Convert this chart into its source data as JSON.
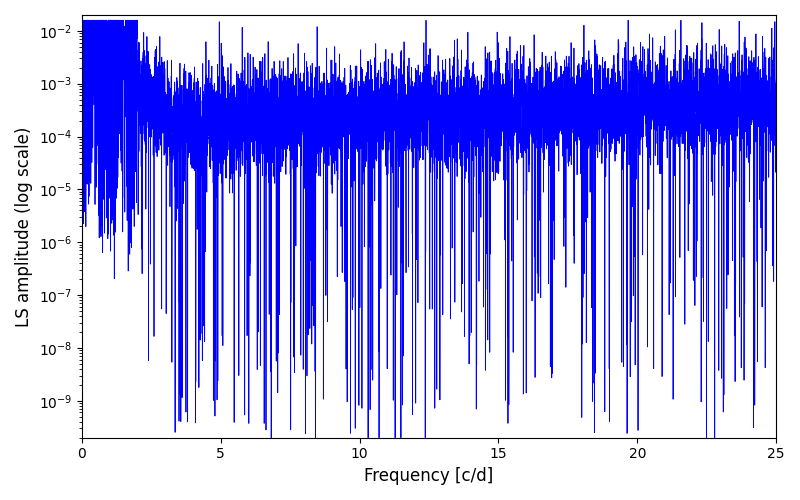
{
  "xlabel": "Frequency [c/d]",
  "ylabel": "LS amplitude (log scale)",
  "line_color": "#0000ff",
  "xlim": [
    0,
    25
  ],
  "ylim_log": [
    -9.7,
    -1.7
  ],
  "xmin": 0.0,
  "xmax": 25.0,
  "n_points": 8000,
  "seed": 7,
  "background_color": "#ffffff",
  "figsize": [
    8.0,
    5.0
  ],
  "dpi": 100
}
